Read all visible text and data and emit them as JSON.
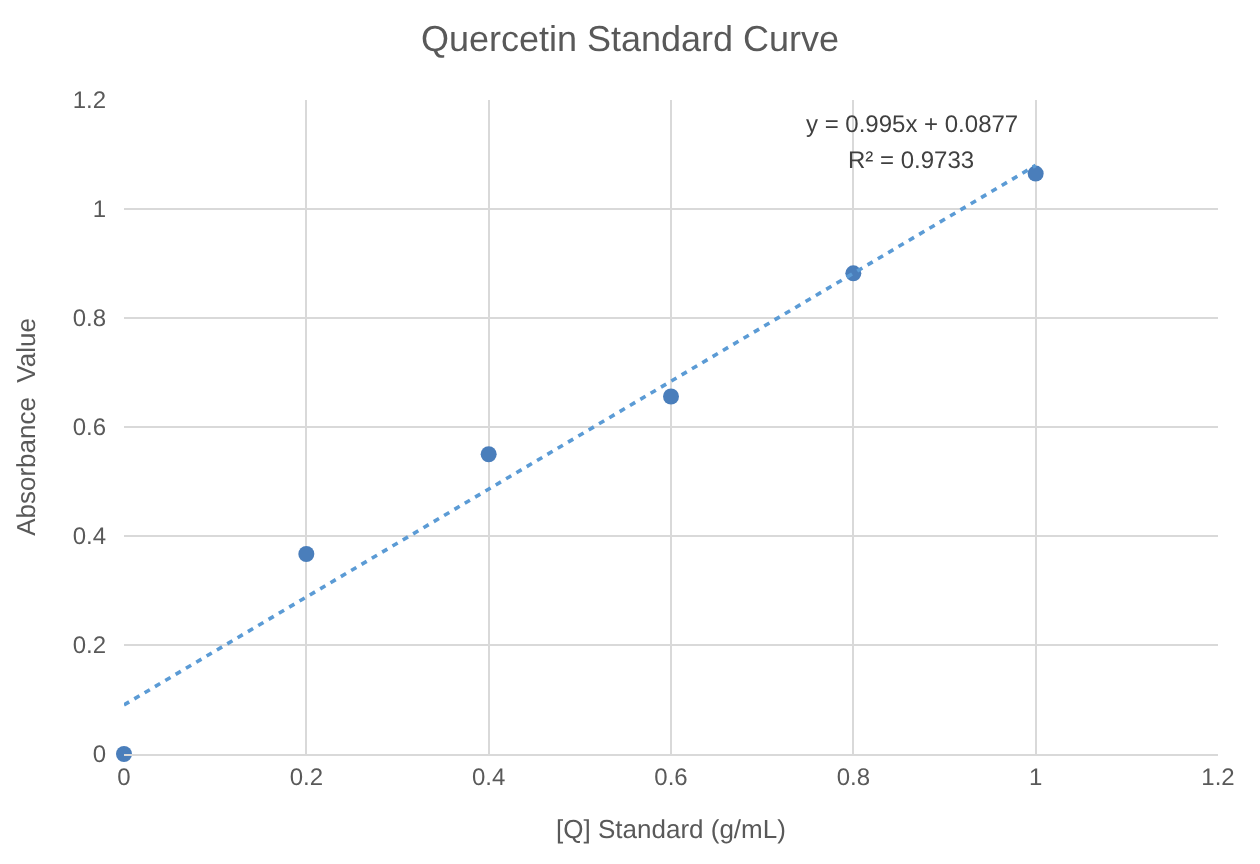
{
  "chart_data": {
    "type": "scatter",
    "title": "Quercetin Standard Curve",
    "xlabel": "[Q] Standard (g/mL)",
    "ylabel": "Absorbance  Value",
    "x": [
      0,
      0.2,
      0.4,
      0.6,
      0.8,
      1.0
    ],
    "series": [
      {
        "color": "#4a7ebb",
        "marker": "circle",
        "values": [
          0,
          0.367,
          0.55,
          0.656,
          0.882,
          1.065
        ]
      },
      {
        "type": "line",
        "color": "#5b9bd5",
        "line_style": "dotted",
        "marker": "none",
        "x": [
          0,
          1
        ],
        "values": [
          0.09,
          1.08
        ]
      }
    ],
    "annotations": [
      "y = 0.995x + 0.0877",
      "R² = 0.9733"
    ],
    "xlim": [
      0,
      1.2
    ],
    "xticks": [
      0,
      0.2,
      0.4,
      0.6,
      0.8,
      1,
      1.2
    ],
    "ylim": [
      0,
      1.2
    ],
    "yticks": [
      0,
      0.2,
      0.4,
      0.6,
      0.8,
      1,
      1.2
    ],
    "grid": true
  }
}
